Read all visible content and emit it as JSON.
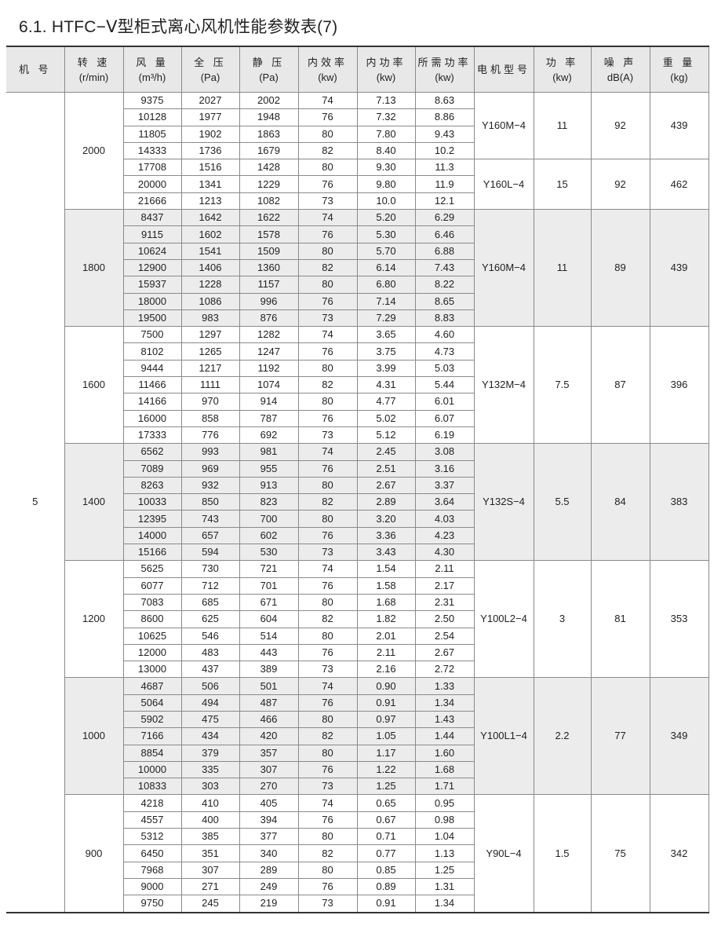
{
  "title": "6.1. HTFC−Ⅴ型柜式离心风机性能参数表(7)",
  "headers": [
    {
      "l1": "机 号",
      "l2": ""
    },
    {
      "l1": "转 速",
      "l2": "(r/min)"
    },
    {
      "l1": "风 量",
      "l2": "(m³/h)"
    },
    {
      "l1": "全 压",
      "l2": "(Pa)"
    },
    {
      "l1": "静 压",
      "l2": "(Pa)"
    },
    {
      "l1": "内效率",
      "l2": "(kw)"
    },
    {
      "l1": "内功率",
      "l2": "(kw)"
    },
    {
      "l1": "所需功率",
      "l2": "(kw)"
    },
    {
      "l1": "电机型号",
      "l2": ""
    },
    {
      "l1": "功 率",
      "l2": "(kw)"
    },
    {
      "l1": "噪 声",
      "l2": "dB(A)"
    },
    {
      "l1": "重 量",
      "l2": "(kg)"
    }
  ],
  "machine_no": "5",
  "groups": [
    {
      "speed": "2000",
      "rows": [
        [
          "9375",
          "2027",
          "2002",
          "74",
          "7.13",
          "8.63"
        ],
        [
          "10128",
          "1977",
          "1948",
          "76",
          "7.32",
          "8.86"
        ],
        [
          "11805",
          "1902",
          "1863",
          "80",
          "7.80",
          "9.43"
        ],
        [
          "14333",
          "1736",
          "1679",
          "82",
          "8.40",
          "10.2"
        ],
        [
          "17708",
          "1516",
          "1428",
          "80",
          "9.30",
          "11.3"
        ],
        [
          "20000",
          "1341",
          "1229",
          "76",
          "9.80",
          "11.9"
        ],
        [
          "21666",
          "1213",
          "1082",
          "73",
          "10.0",
          "12.1"
        ]
      ],
      "motors": [
        {
          "span": 4,
          "model": "Y160M−4",
          "power": "11",
          "noise": "92",
          "weight": "439"
        },
        {
          "span": 3,
          "model": "Y160L−4",
          "power": "15",
          "noise": "92",
          "weight": "462"
        }
      ]
    },
    {
      "speed": "1800",
      "rows": [
        [
          "8437",
          "1642",
          "1622",
          "74",
          "5.20",
          "6.29"
        ],
        [
          "9115",
          "1602",
          "1578",
          "76",
          "5.30",
          "6.46"
        ],
        [
          "10624",
          "1541",
          "1509",
          "80",
          "5.70",
          "6.88"
        ],
        [
          "12900",
          "1406",
          "1360",
          "82",
          "6.14",
          "7.43"
        ],
        [
          "15937",
          "1228",
          "1157",
          "80",
          "6.80",
          "8.22"
        ],
        [
          "18000",
          "1086",
          "996",
          "76",
          "7.14",
          "8.65"
        ],
        [
          "19500",
          "983",
          "876",
          "73",
          "7.29",
          "8.83"
        ]
      ],
      "motors": [
        {
          "span": 7,
          "model": "Y160M−4",
          "power": "11",
          "noise": "89",
          "weight": "439"
        }
      ]
    },
    {
      "speed": "1600",
      "rows": [
        [
          "7500",
          "1297",
          "1282",
          "74",
          "3.65",
          "4.60"
        ],
        [
          "8102",
          "1265",
          "1247",
          "76",
          "3.75",
          "4.73"
        ],
        [
          "9444",
          "1217",
          "1192",
          "80",
          "3.99",
          "5.03"
        ],
        [
          "11466",
          "1111",
          "1074",
          "82",
          "4.31",
          "5.44"
        ],
        [
          "14166",
          "970",
          "914",
          "80",
          "4.77",
          "6.01"
        ],
        [
          "16000",
          "858",
          "787",
          "76",
          "5.02",
          "6.07"
        ],
        [
          "17333",
          "776",
          "692",
          "73",
          "5.12",
          "6.19"
        ]
      ],
      "motors": [
        {
          "span": 7,
          "model": "Y132M−4",
          "power": "7.5",
          "noise": "87",
          "weight": "396"
        }
      ]
    },
    {
      "speed": "1400",
      "rows": [
        [
          "6562",
          "993",
          "981",
          "74",
          "2.45",
          "3.08"
        ],
        [
          "7089",
          "969",
          "955",
          "76",
          "2.51",
          "3.16"
        ],
        [
          "8263",
          "932",
          "913",
          "80",
          "2.67",
          "3.37"
        ],
        [
          "10033",
          "850",
          "823",
          "82",
          "2.89",
          "3.64"
        ],
        [
          "12395",
          "743",
          "700",
          "80",
          "3.20",
          "4.03"
        ],
        [
          "14000",
          "657",
          "602",
          "76",
          "3.36",
          "4.23"
        ],
        [
          "15166",
          "594",
          "530",
          "73",
          "3.43",
          "4.30"
        ]
      ],
      "motors": [
        {
          "span": 7,
          "model": "Y132S−4",
          "power": "5.5",
          "noise": "84",
          "weight": "383"
        }
      ]
    },
    {
      "speed": "1200",
      "rows": [
        [
          "5625",
          "730",
          "721",
          "74",
          "1.54",
          "2.11"
        ],
        [
          "6077",
          "712",
          "701",
          "76",
          "1.58",
          "2.17"
        ],
        [
          "7083",
          "685",
          "671",
          "80",
          "1.68",
          "2.31"
        ],
        [
          "8600",
          "625",
          "604",
          "82",
          "1.82",
          "2.50"
        ],
        [
          "10625",
          "546",
          "514",
          "80",
          "2.01",
          "2.54"
        ],
        [
          "12000",
          "483",
          "443",
          "76",
          "2.11",
          "2.67"
        ],
        [
          "13000",
          "437",
          "389",
          "73",
          "2.16",
          "2.72"
        ]
      ],
      "motors": [
        {
          "span": 7,
          "model": "Y100L2−4",
          "power": "3",
          "noise": "81",
          "weight": "353"
        }
      ]
    },
    {
      "speed": "1000",
      "rows": [
        [
          "4687",
          "506",
          "501",
          "74",
          "0.90",
          "1.33"
        ],
        [
          "5064",
          "494",
          "487",
          "76",
          "0.91",
          "1.34"
        ],
        [
          "5902",
          "475",
          "466",
          "80",
          "0.97",
          "1.43"
        ],
        [
          "7166",
          "434",
          "420",
          "82",
          "1.05",
          "1.44"
        ],
        [
          "8854",
          "379",
          "357",
          "80",
          "1.17",
          "1.60"
        ],
        [
          "10000",
          "335",
          "307",
          "76",
          "1.22",
          "1.68"
        ],
        [
          "10833",
          "303",
          "270",
          "73",
          "1.25",
          "1.71"
        ]
      ],
      "motors": [
        {
          "span": 7,
          "model": "Y100L1−4",
          "power": "2.2",
          "noise": "77",
          "weight": "349"
        }
      ]
    },
    {
      "speed": "900",
      "rows": [
        [
          "4218",
          "410",
          "405",
          "74",
          "0.65",
          "0.95"
        ],
        [
          "4557",
          "400",
          "394",
          "76",
          "0.67",
          "0.98"
        ],
        [
          "5312",
          "385",
          "377",
          "80",
          "0.71",
          "1.04"
        ],
        [
          "6450",
          "351",
          "340",
          "82",
          "0.77",
          "1.13"
        ],
        [
          "7968",
          "307",
          "289",
          "80",
          "0.85",
          "1.25"
        ],
        [
          "9000",
          "271",
          "249",
          "76",
          "0.89",
          "1.31"
        ],
        [
          "9750",
          "245",
          "219",
          "73",
          "0.91",
          "1.34"
        ]
      ],
      "motors": [
        {
          "span": 7,
          "model": "Y90L−4",
          "power": "1.5",
          "noise": "75",
          "weight": "342"
        }
      ]
    }
  ],
  "colors": {
    "header_bg": "#e8e8e8",
    "alt_group_bg": "#ececec",
    "border": "#8a8a8a"
  }
}
